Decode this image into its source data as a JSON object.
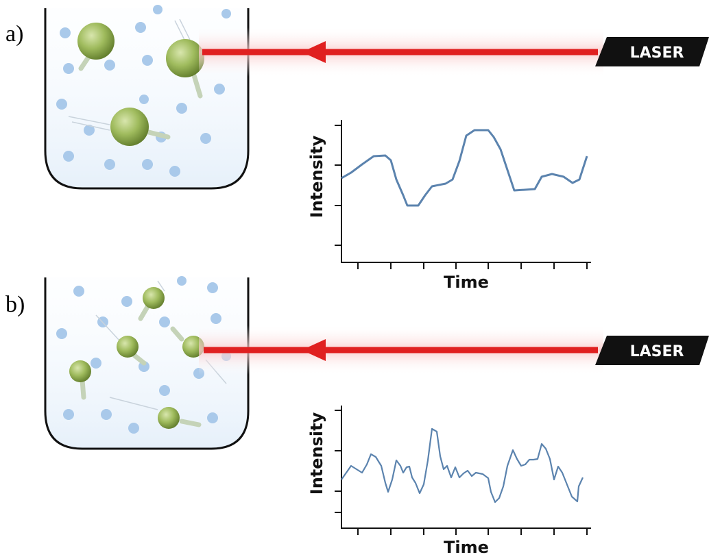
{
  "panels": [
    {
      "label": "a)",
      "laser": "LASER",
      "y_axis_label": "Intensity",
      "x_axis_label": "Time"
    },
    {
      "label": "b)",
      "laser": "LASER",
      "y_axis_label": "Intensity",
      "x_axis_label": "Time"
    }
  ]
}
